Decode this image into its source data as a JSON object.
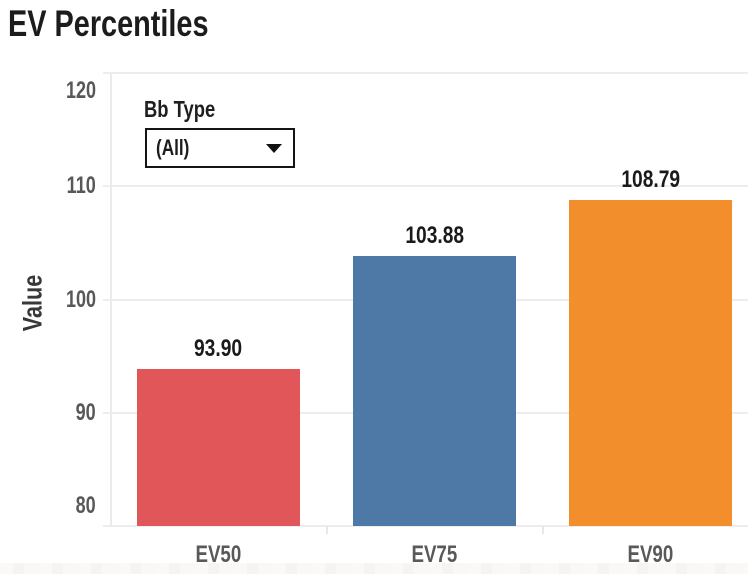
{
  "page": {
    "title": "EV Percentiles"
  },
  "filter": {
    "label": "Bb Type",
    "selected_value": "(All)",
    "icon": "caret-down-icon"
  },
  "chart_data": {
    "type": "bar",
    "title": "EV Percentiles",
    "categories": [
      "EV50",
      "EV75",
      "EV90"
    ],
    "values": [
      93.9,
      103.88,
      108.79
    ],
    "values_formatted": [
      "93.90",
      "103.88",
      "108.79"
    ],
    "bar_colors": [
      "#e15759",
      "#4e79a7",
      "#f28e2b"
    ],
    "xlabel": "",
    "ylabel": "Value",
    "yticks": [
      80,
      90,
      100,
      110,
      120
    ],
    "ylim": [
      80,
      120
    ],
    "grid": true,
    "gridline_color": "#ededed",
    "tick_label_color": "#585858",
    "value_label_color": "#1a1a1a",
    "legend": "none"
  }
}
